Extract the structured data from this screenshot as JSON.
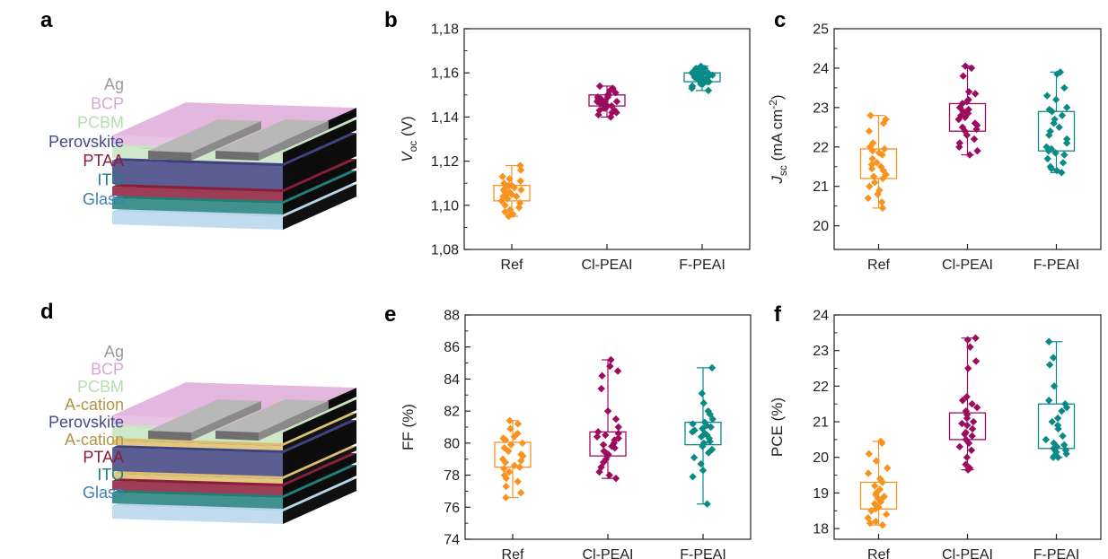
{
  "panel_letters": [
    "a",
    "b",
    "c",
    "d",
    "e",
    "f"
  ],
  "devices": [
    {
      "panel": "a",
      "layers": [
        {
          "label": "Ag",
          "color": "#9a9a9a"
        },
        {
          "label": "BCP",
          "color": "#d9a6d4"
        },
        {
          "label": "PCBM",
          "color": "#b6ddb0"
        },
        {
          "label": "Perovskite",
          "color": "#474a8a"
        },
        {
          "label": "PTAA",
          "color": "#8c1c38"
        },
        {
          "label": "ITO",
          "color": "#1f7f78"
        },
        {
          "label": "Glass",
          "color": "#3f7fb5"
        }
      ]
    },
    {
      "panel": "d",
      "layers": [
        {
          "label": "Ag",
          "color": "#9a9a9a"
        },
        {
          "label": "BCP",
          "color": "#d9a6d4"
        },
        {
          "label": "PCBM",
          "color": "#b6ddb0"
        },
        {
          "label": "A-cation",
          "color": "#b39443"
        },
        {
          "label": "Perovskite",
          "color": "#474a8a"
        },
        {
          "label": "A-cation",
          "color": "#b39443"
        },
        {
          "label": "PTAA",
          "color": "#8c1c38"
        },
        {
          "label": "ITO",
          "color": "#1f7f78"
        },
        {
          "label": "Glass",
          "color": "#3f7fb5"
        }
      ]
    }
  ],
  "colors": {
    "Ref": "#f7931e",
    "Cl-PEAI": "#9c0b5e",
    "F-PEAI": "#0a8a86"
  },
  "chart_data": [
    {
      "panel": "b",
      "type": "box",
      "ylabel": "Voc (V)",
      "ylabel_main": "V",
      "ylabel_sub": "oc",
      "ylabel_rest": " (V)",
      "ylim": [
        1.08,
        1.18
      ],
      "yticks": [
        1.08,
        1.1,
        1.12,
        1.14,
        1.16,
        1.18
      ],
      "yticklabels": [
        "1,08",
        "1,10",
        "1,12",
        "1,14",
        "1,16",
        "1,18"
      ],
      "categories": [
        "Ref",
        "Cl-PEAI",
        "F-PEAI"
      ],
      "series": [
        {
          "name": "Ref",
          "q1": 1.102,
          "q3": 1.109,
          "whisker_low": 1.095,
          "whisker_high": 1.118,
          "points": [
            1.118,
            1.116,
            1.113,
            1.112,
            1.111,
            1.11,
            1.109,
            1.109,
            1.108,
            1.108,
            1.107,
            1.107,
            1.106,
            1.106,
            1.105,
            1.105,
            1.104,
            1.104,
            1.103,
            1.103,
            1.102,
            1.101,
            1.1,
            1.099,
            1.098,
            1.097,
            1.096,
            1.095
          ]
        },
        {
          "name": "Cl-PEAI",
          "q1": 1.145,
          "q3": 1.15,
          "whisker_low": 1.14,
          "whisker_high": 1.154,
          "points": [
            1.154,
            1.153,
            1.152,
            1.151,
            1.15,
            1.15,
            1.149,
            1.149,
            1.148,
            1.148,
            1.148,
            1.147,
            1.147,
            1.147,
            1.146,
            1.146,
            1.146,
            1.145,
            1.145,
            1.144,
            1.144,
            1.143,
            1.143,
            1.142,
            1.142,
            1.141,
            1.14
          ]
        },
        {
          "name": "F-PEAI",
          "q1": 1.156,
          "q3": 1.16,
          "whisker_low": 1.152,
          "whisker_high": 1.163,
          "points": [
            1.163,
            1.162,
            1.162,
            1.161,
            1.161,
            1.16,
            1.16,
            1.16,
            1.159,
            1.159,
            1.159,
            1.158,
            1.158,
            1.158,
            1.158,
            1.157,
            1.157,
            1.157,
            1.156,
            1.156,
            1.156,
            1.155,
            1.155,
            1.154,
            1.154,
            1.153,
            1.152
          ]
        }
      ]
    },
    {
      "panel": "c",
      "type": "box",
      "ylabel": "Jsc (mA cm-2)",
      "ylabel_main": "J",
      "ylabel_sub": "sc",
      "ylabel_rest": " (mA cm",
      "ylabel_sup": "-2",
      "ylabel_close": ")",
      "ylim": [
        19.4,
        25
      ],
      "yticks": [
        20,
        21,
        22,
        23,
        24,
        25
      ],
      "yticklabels": [
        "20",
        "21",
        "22",
        "23",
        "24",
        "25"
      ],
      "categories": [
        "Ref",
        "Cl-PEAI",
        "F-PEAI"
      ],
      "series": [
        {
          "name": "Ref",
          "q1": 21.2,
          "q3": 21.95,
          "whisker_low": 20.45,
          "whisker_high": 22.8,
          "points": [
            22.8,
            22.7,
            22.6,
            22.4,
            22.1,
            22.0,
            21.95,
            21.9,
            21.85,
            21.8,
            21.7,
            21.6,
            21.55,
            21.5,
            21.45,
            21.4,
            21.3,
            21.25,
            21.2,
            21.1,
            21.0,
            20.9,
            20.8,
            20.7,
            20.6,
            20.45
          ]
        },
        {
          "name": "Cl-PEAI",
          "q1": 22.4,
          "q3": 23.1,
          "whisker_low": 21.8,
          "whisker_high": 24.05,
          "points": [
            24.05,
            24.0,
            23.8,
            23.4,
            23.35,
            23.2,
            23.15,
            23.1,
            23.0,
            22.95,
            22.9,
            22.85,
            22.8,
            22.75,
            22.7,
            22.6,
            22.55,
            22.5,
            22.45,
            22.4,
            22.3,
            22.2,
            22.1,
            22.0,
            21.9,
            21.8
          ]
        },
        {
          "name": "F-PEAI",
          "q1": 21.9,
          "q3": 22.9,
          "whisker_low": 21.35,
          "whisker_high": 23.9,
          "points": [
            23.9,
            23.85,
            23.5,
            23.3,
            23.2,
            23.0,
            22.95,
            22.9,
            22.8,
            22.7,
            22.6,
            22.5,
            22.4,
            22.3,
            22.2,
            22.1,
            22.0,
            21.95,
            21.9,
            21.85,
            21.8,
            21.7,
            21.6,
            21.5,
            21.45,
            21.4,
            21.35
          ]
        }
      ]
    },
    {
      "panel": "e",
      "type": "box",
      "ylabel": "FF (%)",
      "ylim": [
        74,
        88
      ],
      "yticks": [
        74,
        76,
        78,
        80,
        82,
        84,
        86,
        88
      ],
      "yticklabels": [
        "74",
        "76",
        "78",
        "80",
        "82",
        "84",
        "86",
        "88"
      ],
      "categories": [
        "Ref",
        "Cl-PEAI",
        "F-PEAI"
      ],
      "series": [
        {
          "name": "Ref",
          "q1": 78.5,
          "q3": 80.05,
          "whisker_low": 76.6,
          "whisker_high": 81.4,
          "points": [
            81.4,
            81.2,
            80.9,
            80.6,
            80.4,
            80.3,
            80.2,
            80.0,
            79.9,
            79.7,
            79.5,
            79.3,
            79.2,
            79.0,
            78.9,
            78.8,
            78.6,
            78.5,
            78.4,
            78.2,
            78.0,
            77.8,
            77.6,
            77.3,
            76.9,
            76.6
          ]
        },
        {
          "name": "Cl-PEAI",
          "q1": 79.2,
          "q3": 80.7,
          "whisker_low": 77.8,
          "whisker_high": 85.2,
          "points": [
            85.2,
            84.8,
            84.5,
            84.2,
            83.4,
            82.0,
            81.5,
            81.0,
            80.7,
            80.6,
            80.5,
            80.4,
            80.3,
            80.2,
            80.0,
            79.9,
            79.8,
            79.7,
            79.5,
            79.4,
            79.3,
            79.2,
            79.0,
            78.8,
            78.5,
            78.2,
            78.0,
            77.8
          ]
        },
        {
          "name": "F-PEAI",
          "q1": 79.9,
          "q3": 81.3,
          "whisker_low": 76.2,
          "whisker_high": 84.7,
          "points": [
            84.7,
            83.1,
            82.5,
            82.0,
            81.8,
            81.5,
            81.3,
            81.2,
            81.1,
            81.0,
            80.9,
            80.8,
            80.7,
            80.6,
            80.5,
            80.4,
            80.3,
            80.1,
            80.0,
            79.8,
            79.6,
            79.4,
            79.1,
            78.7,
            78.3,
            77.9,
            76.2
          ]
        }
      ]
    },
    {
      "panel": "f",
      "type": "box",
      "ylabel": "PCE (%)",
      "ylim": [
        17.7,
        24
      ],
      "yticks": [
        18,
        19,
        20,
        21,
        22,
        23,
        24
      ],
      "yticklabels": [
        "18",
        "19",
        "20",
        "21",
        "22",
        "23",
        "24"
      ],
      "categories": [
        "Ref",
        "Cl-PEAI",
        "F-PEAI"
      ],
      "series": [
        {
          "name": "Ref",
          "q1": 18.55,
          "q3": 19.3,
          "whisker_low": 18.1,
          "whisker_high": 20.45,
          "points": [
            20.45,
            20.4,
            20.1,
            19.9,
            19.7,
            19.55,
            19.4,
            19.3,
            19.2,
            19.1,
            19.0,
            18.95,
            18.9,
            18.85,
            18.8,
            18.75,
            18.7,
            18.65,
            18.6,
            18.55,
            18.5,
            18.4,
            18.3,
            18.2,
            18.15,
            18.1
          ]
        },
        {
          "name": "Cl-PEAI",
          "q1": 20.5,
          "q3": 21.25,
          "whisker_low": 19.65,
          "whisker_high": 23.35,
          "points": [
            23.35,
            23.3,
            23.1,
            22.7,
            22.5,
            21.7,
            21.6,
            21.5,
            21.4,
            21.3,
            21.2,
            21.1,
            21.0,
            20.95,
            20.9,
            20.8,
            20.7,
            20.65,
            20.6,
            20.5,
            20.4,
            20.3,
            20.2,
            20.0,
            19.8,
            19.7,
            19.65
          ]
        },
        {
          "name": "F-PEAI",
          "q1": 20.25,
          "q3": 21.5,
          "whisker_low": 20.0,
          "whisker_high": 23.25,
          "points": [
            23.25,
            22.8,
            22.6,
            22.0,
            21.6,
            21.5,
            21.4,
            21.3,
            21.1,
            21.0,
            20.9,
            20.8,
            20.6,
            20.5,
            20.4,
            20.35,
            20.3,
            20.25,
            20.2,
            20.15,
            20.1,
            20.05,
            20.0,
            20.0
          ]
        }
      ]
    }
  ]
}
